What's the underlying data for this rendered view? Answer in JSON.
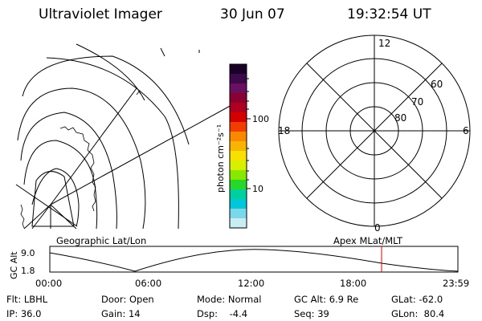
{
  "header": {
    "title": "Ultraviolet Imager",
    "date": "30 Jun 07",
    "time": "19:32:54 UT"
  },
  "colorbar": {
    "unit_label": "photon cm⁻²s⁻¹",
    "ticks": [
      "100",
      "10"
    ],
    "colors": [
      "#1a0026",
      "#3c0a4a",
      "#6a1060",
      "#8a0030",
      "#b00020",
      "#d40000",
      "#f23c00",
      "#f88800",
      "#f8b400",
      "#f8e000",
      "#d8f000",
      "#88e800",
      "#28d828",
      "#00d0a0",
      "#00c8d8",
      "#7ad8e8",
      "#c8eef4"
    ]
  },
  "geographic_panel": {
    "caption": "Geographic Lat/Lon"
  },
  "polar_panel": {
    "caption": "Apex MLat/MLT",
    "mlt_labels": {
      "top": "12",
      "bottom": "0",
      "left": "18",
      "right": "6"
    },
    "lat_labels": [
      "60",
      "70",
      "80"
    ]
  },
  "timeline": {
    "ylabel": "GC Alt",
    "yticks": [
      "9.0",
      "1.8"
    ],
    "xticks": [
      "00:00",
      "06:00",
      "12:00",
      "18:00",
      "23:59"
    ],
    "marker_color": "#e00000"
  },
  "info": {
    "row1": [
      "Flt: LBHL",
      "Door: Open",
      "Mode: Normal",
      "GC Alt: 6.9 Re",
      "GLat: -62.0"
    ],
    "row2": [
      "IP: 36.0",
      "Gain: 14",
      "Dsp:    -4.4",
      "Seq: 39",
      "GLon:  80.4"
    ]
  }
}
